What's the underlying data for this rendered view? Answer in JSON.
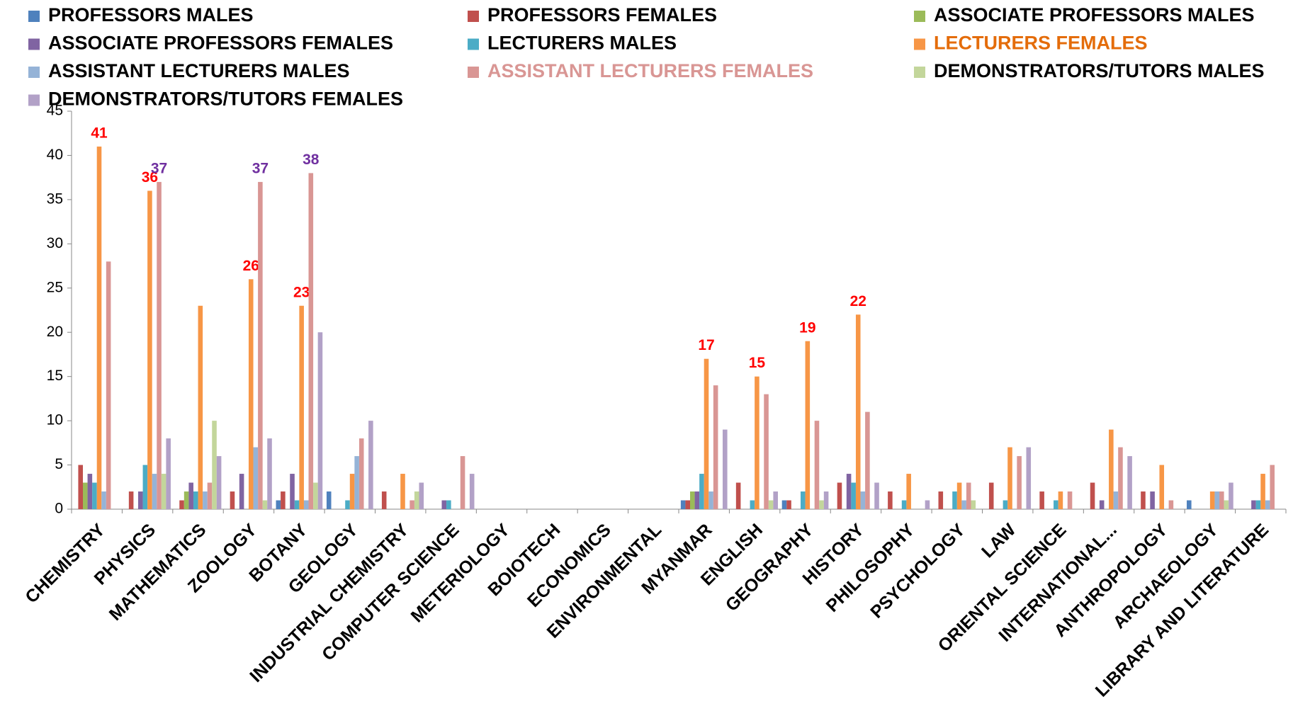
{
  "chart_data": {
    "type": "bar",
    "categories": [
      "CHEMISTRY",
      "PHYSICS",
      "MATHEMATICS",
      "ZOOLOGY",
      "BOTANY",
      "GEOLOGY",
      "INDUSTRIAL CHEMISTRY",
      "COMPUTER SCIENCE",
      "METERIOLOGY",
      "BOIOTECH",
      "ECONOMICS",
      "ENVIRONMENTAL",
      "MYANMAR",
      "ENGLISH",
      "GEOGRAPHY",
      "HISTORY",
      "PHILOSOPHY",
      "PSYCHOLOGY",
      "LAW",
      "ORIENTAL SCIENCE",
      "INTERNATIONAL...",
      "ANTHROPOLOGY",
      "ARCHAEOLOGY",
      "LIBRARY AND LITERATURE"
    ],
    "series": [
      {
        "name": "PROFESSORS MALES",
        "color": "#4F81BD",
        "values": [
          0,
          0,
          0,
          0,
          1,
          2,
          0,
          0,
          0,
          0,
          0,
          0,
          1,
          0,
          1,
          0,
          0,
          0,
          0,
          0,
          0,
          0,
          1,
          0
        ]
      },
      {
        "name": "PROFESSORS FEMALES",
        "color": "#C0504D",
        "values": [
          5,
          2,
          1,
          2,
          2,
          0,
          2,
          0,
          0,
          0,
          0,
          0,
          1,
          3,
          1,
          3,
          2,
          2,
          3,
          2,
          3,
          2,
          0,
          0
        ]
      },
      {
        "name": "ASSOCIATE PROFESSORS MALES",
        "color": "#9BBB59",
        "values": [
          3,
          0,
          2,
          0,
          0,
          0,
          0,
          0,
          0,
          0,
          0,
          0,
          2,
          0,
          0,
          0,
          0,
          0,
          0,
          0,
          0,
          0,
          0,
          0
        ]
      },
      {
        "name": "ASSOCIATE PROFESSORS FEMALES",
        "color": "#8064A2",
        "values": [
          4,
          2,
          3,
          4,
          4,
          0,
          0,
          1,
          0,
          0,
          0,
          0,
          2,
          0,
          0,
          4,
          0,
          0,
          0,
          0,
          1,
          2,
          0,
          1
        ]
      },
      {
        "name": "LECTURERS MALES",
        "color": "#4BACC6",
        "values": [
          3,
          5,
          2,
          0,
          1,
          1,
          0,
          1,
          0,
          0,
          0,
          0,
          4,
          1,
          2,
          3,
          1,
          2,
          1,
          1,
          0,
          0,
          0,
          1
        ]
      },
      {
        "name": "LECTURERS FEMALES",
        "color": "#F79646",
        "legend_color": "#E46C0A",
        "label_color": "#FF0000",
        "values": [
          41,
          36,
          23,
          26,
          23,
          4,
          4,
          0,
          0,
          0,
          0,
          0,
          17,
          15,
          19,
          22,
          4,
          3,
          7,
          2,
          9,
          5,
          2,
          4
        ],
        "value_labels": [
          "41",
          "36",
          null,
          "26",
          "23",
          null,
          null,
          null,
          null,
          null,
          null,
          null,
          "17",
          "15",
          "19",
          "22",
          null,
          null,
          null,
          null,
          null,
          null,
          null,
          null
        ]
      },
      {
        "name": "ASSISTANT LECTURERS MALES",
        "color": "#95B3D7",
        "values": [
          2,
          4,
          2,
          7,
          1,
          6,
          0,
          0,
          0,
          0,
          0,
          0,
          2,
          0,
          0,
          2,
          0,
          1,
          0,
          0,
          2,
          0,
          2,
          1
        ]
      },
      {
        "name": "ASSISTANT LECTURERS FEMALES",
        "color": "#D99694",
        "legend_color": "#D99694",
        "label_color": "#7030A0",
        "values": [
          28,
          37,
          3,
          37,
          38,
          8,
          1,
          6,
          0,
          0,
          0,
          0,
          14,
          13,
          10,
          11,
          0,
          3,
          6,
          2,
          7,
          1,
          2,
          5
        ],
        "value_labels": [
          null,
          "37",
          null,
          "37",
          "38",
          null,
          null,
          null,
          null,
          null,
          null,
          null,
          null,
          null,
          null,
          null,
          null,
          null,
          null,
          null,
          null,
          null,
          null,
          null
        ]
      },
      {
        "name": "DEMONSTRATORS/TUTORS MALES",
        "color": "#C3D69B",
        "values": [
          0,
          4,
          10,
          1,
          3,
          0,
          2,
          0,
          0,
          0,
          0,
          0,
          0,
          1,
          1,
          0,
          0,
          1,
          0,
          0,
          0,
          0,
          1,
          0
        ]
      },
      {
        "name": "DEMONSTRATORS/TUTORS FEMALES",
        "color": "#B2A1C7",
        "values": [
          0,
          8,
          6,
          8,
          20,
          10,
          3,
          4,
          0,
          0,
          0,
          0,
          9,
          2,
          2,
          3,
          1,
          0,
          7,
          0,
          6,
          0,
          3,
          0
        ]
      }
    ],
    "ylim": [
      0,
      45
    ],
    "yticks": [
      0,
      5,
      10,
      15,
      20,
      25,
      30,
      35,
      40,
      45
    ],
    "grid": false
  }
}
